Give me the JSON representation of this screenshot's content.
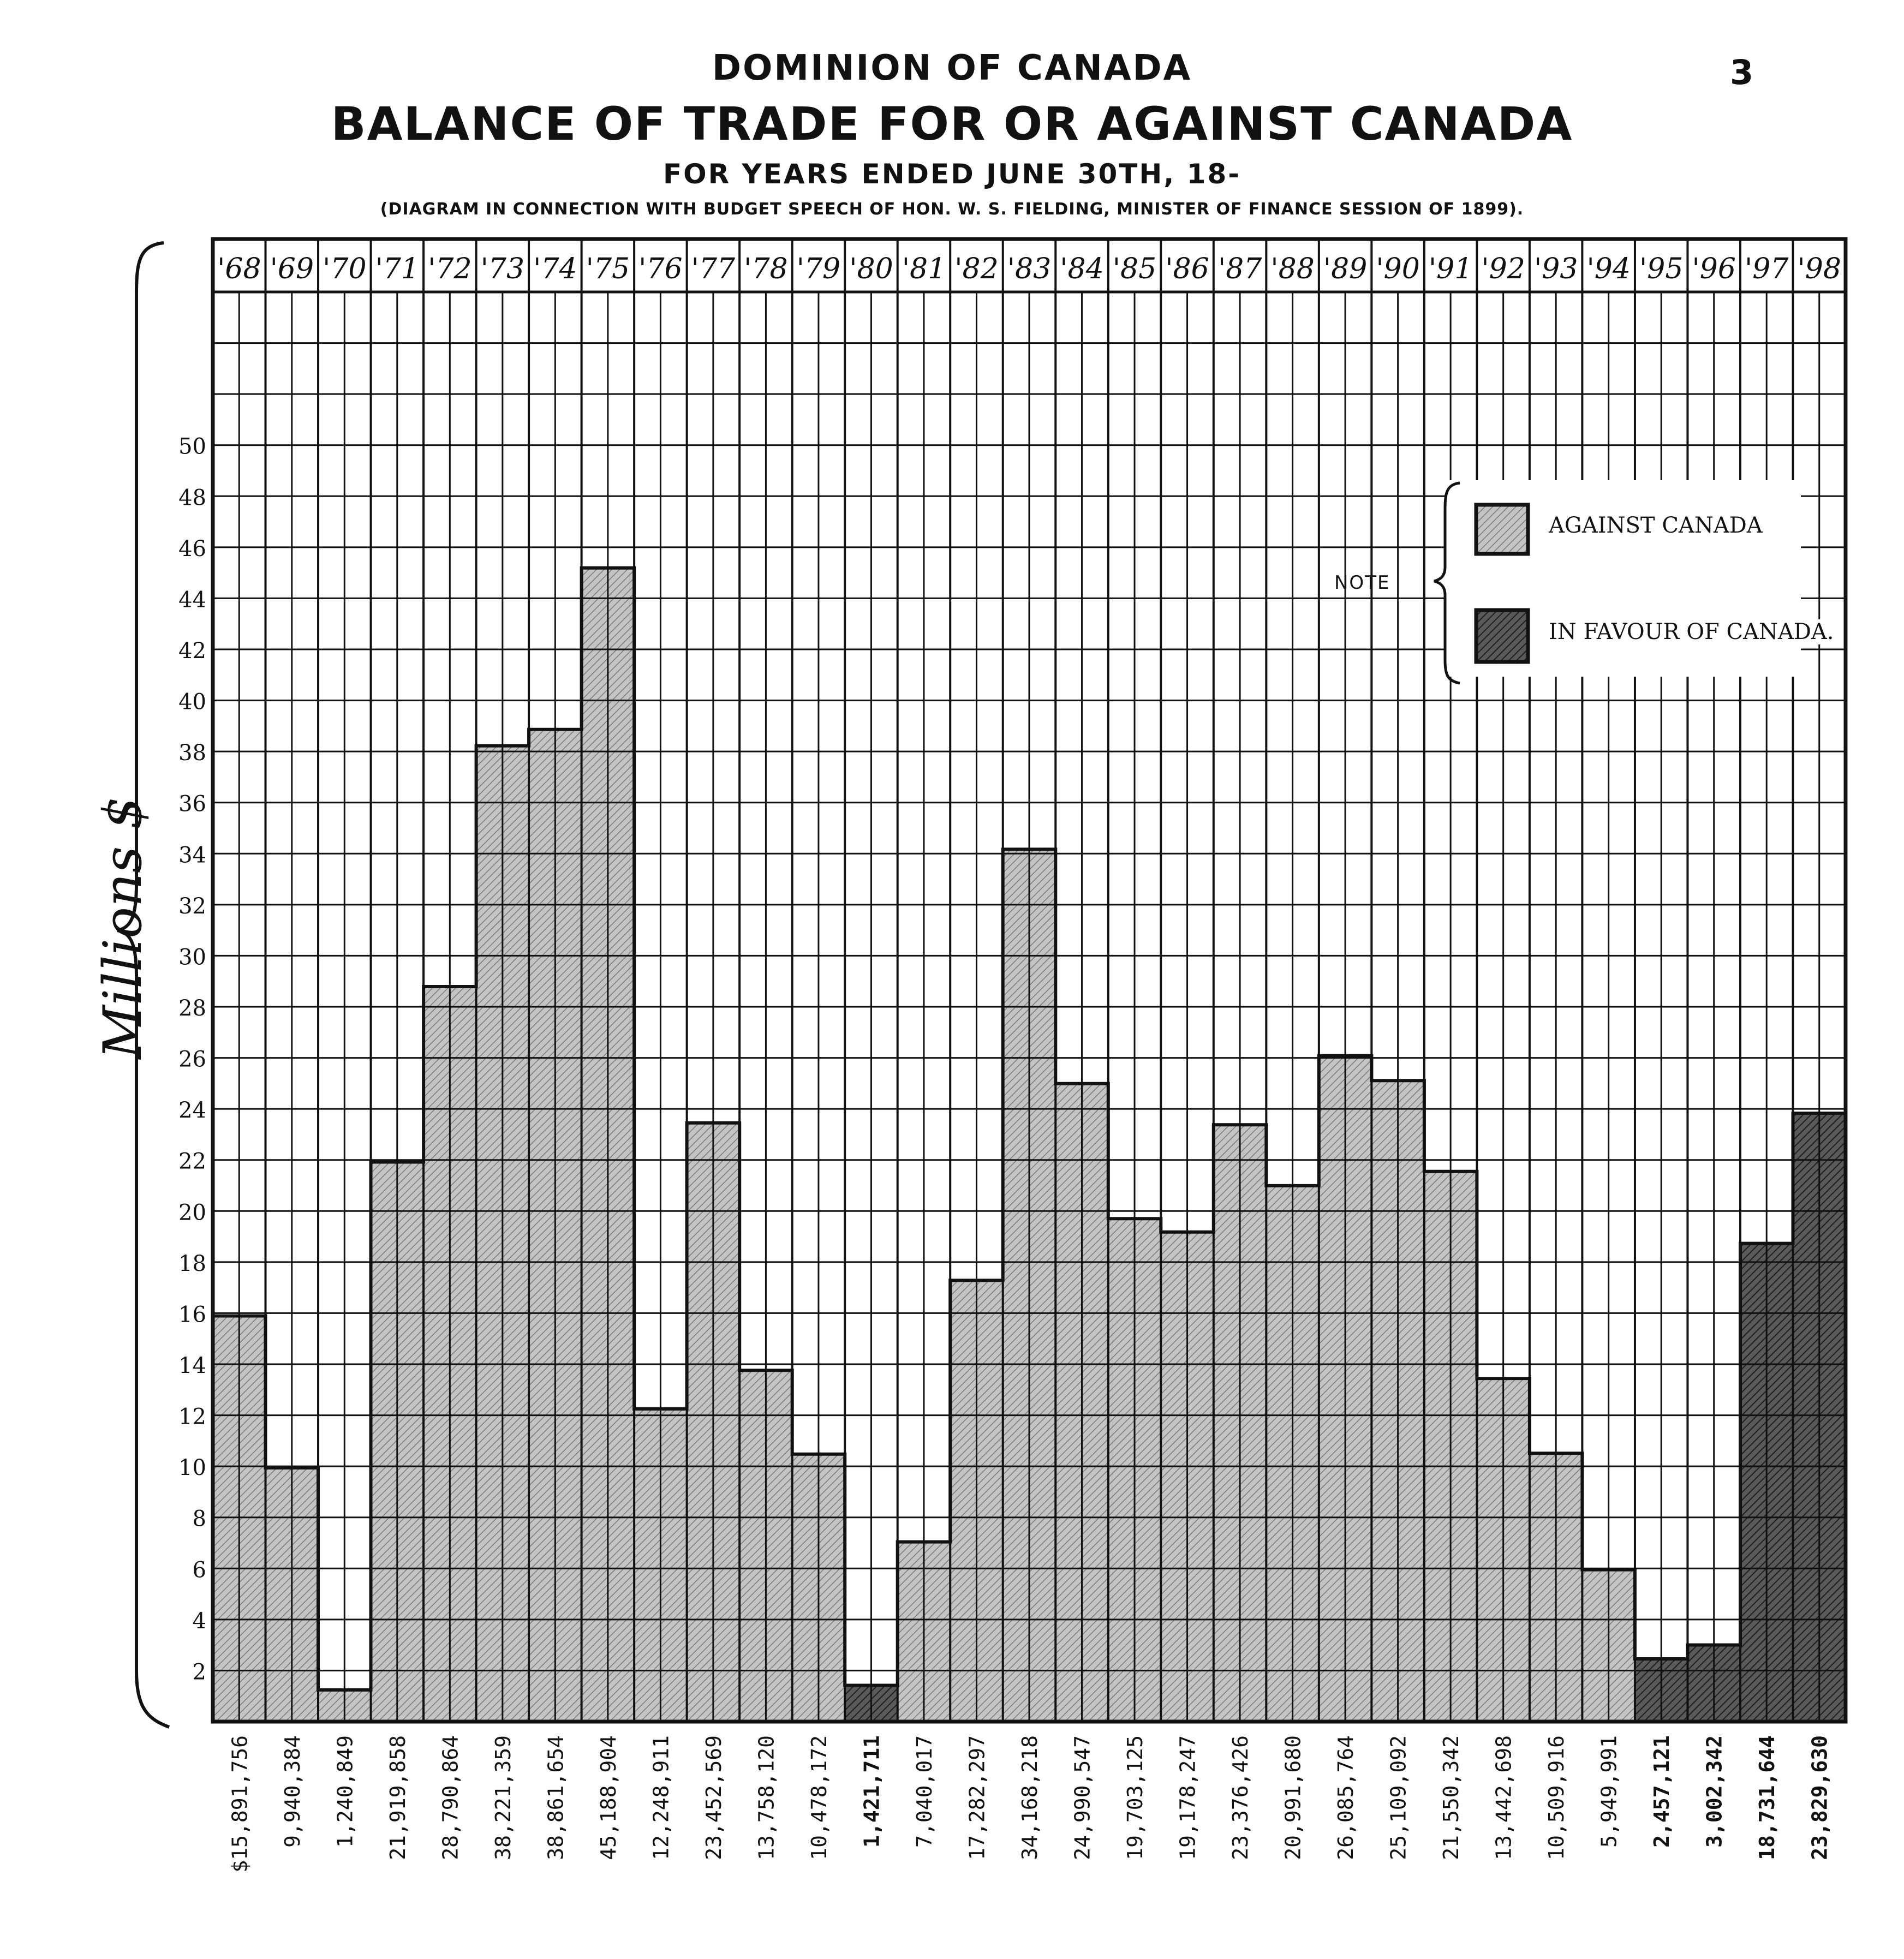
{
  "page_number": "3",
  "header": {
    "title1": "DOMINION OF CANADA",
    "title2": "BALANCE OF TRADE FOR OR AGAINST CANADA",
    "title3": "FOR YEARS ENDED JUNE 30TH, 18-",
    "title4": "(DIAGRAM IN CONNECTION WITH BUDGET SPEECH OF HON. W. S. FIELDING, MINISTER OF FINANCE SESSION OF 1899)."
  },
  "legend": {
    "note": "NOTE",
    "against_label": "AGAINST CANADA",
    "favour_label": "IN FAVOUR OF CANADA."
  },
  "colors": {
    "against": "#bdbdbd",
    "favour": "#4a4a4a",
    "ink": "#111111",
    "paper": "#ffffff"
  },
  "chart_data": {
    "type": "bar",
    "title": "BALANCE OF TRADE FOR OR AGAINST CANADA",
    "ylabel": "Millions $",
    "xlabel": "",
    "ylim": [
      0,
      56
    ],
    "grid": true,
    "legend_position": "top-right",
    "yticks": [
      "2",
      "4",
      "6",
      "8",
      "10",
      "12",
      "14",
      "16",
      "18",
      "20",
      "22",
      "24",
      "26",
      "28",
      "30",
      "32",
      "34",
      "36",
      "38",
      "40",
      "42",
      "44",
      "46",
      "48",
      "50"
    ],
    "categories": [
      "'68",
      "'69",
      "'70",
      "'71",
      "'72",
      "'73",
      "'74",
      "'75",
      "'76",
      "'77",
      "'78",
      "'79",
      "'80",
      "'81",
      "'82",
      "'83",
      "'84",
      "'85",
      "'86",
      "'87",
      "'88",
      "'89",
      "'90",
      "'91",
      "'92",
      "'93",
      "'94",
      "'95",
      "'96",
      "'97",
      "'98"
    ],
    "values": [
      15891756,
      9940384,
      1240849,
      21919858,
      28790864,
      38221359,
      38861654,
      45188904,
      12248911,
      23452569,
      13758120,
      10478172,
      1421711,
      7040017,
      17282297,
      34168218,
      24990547,
      19703125,
      19178247,
      23376426,
      20991680,
      26085764,
      25109092,
      21550342,
      13442698,
      10509916,
      5949991,
      2457121,
      3002342,
      18731644,
      23829630
    ],
    "value_labels": [
      "$15,891,756",
      "9,940,384",
      "1,240,849",
      "21,919,858",
      "28,790,864",
      "38,221,359",
      "38,861,654",
      "45,188,904",
      "12,248,911",
      "23,452,569",
      "13,758,120",
      "10,478,172",
      "1,421,711",
      "7,040,017",
      "17,282,297",
      "34,168,218",
      "24,990,547",
      "19,703,125",
      "19,178,247",
      "23,376,426",
      "20,991,680",
      "26,085,764",
      "25,109,092",
      "21,550,342",
      "13,442,698",
      "10,509,916",
      "5,949,991",
      "2,457,121",
      "3,002,342",
      "18,731,644",
      "23,829,630"
    ],
    "direction": [
      "against",
      "against",
      "against",
      "against",
      "against",
      "against",
      "against",
      "against",
      "against",
      "against",
      "against",
      "against",
      "favour",
      "against",
      "against",
      "against",
      "against",
      "against",
      "against",
      "against",
      "against",
      "against",
      "against",
      "against",
      "against",
      "against",
      "against",
      "favour",
      "favour",
      "favour",
      "favour"
    ],
    "series": [
      {
        "name": "AGAINST CANADA"
      },
      {
        "name": "IN FAVOUR OF CANADA."
      }
    ]
  }
}
